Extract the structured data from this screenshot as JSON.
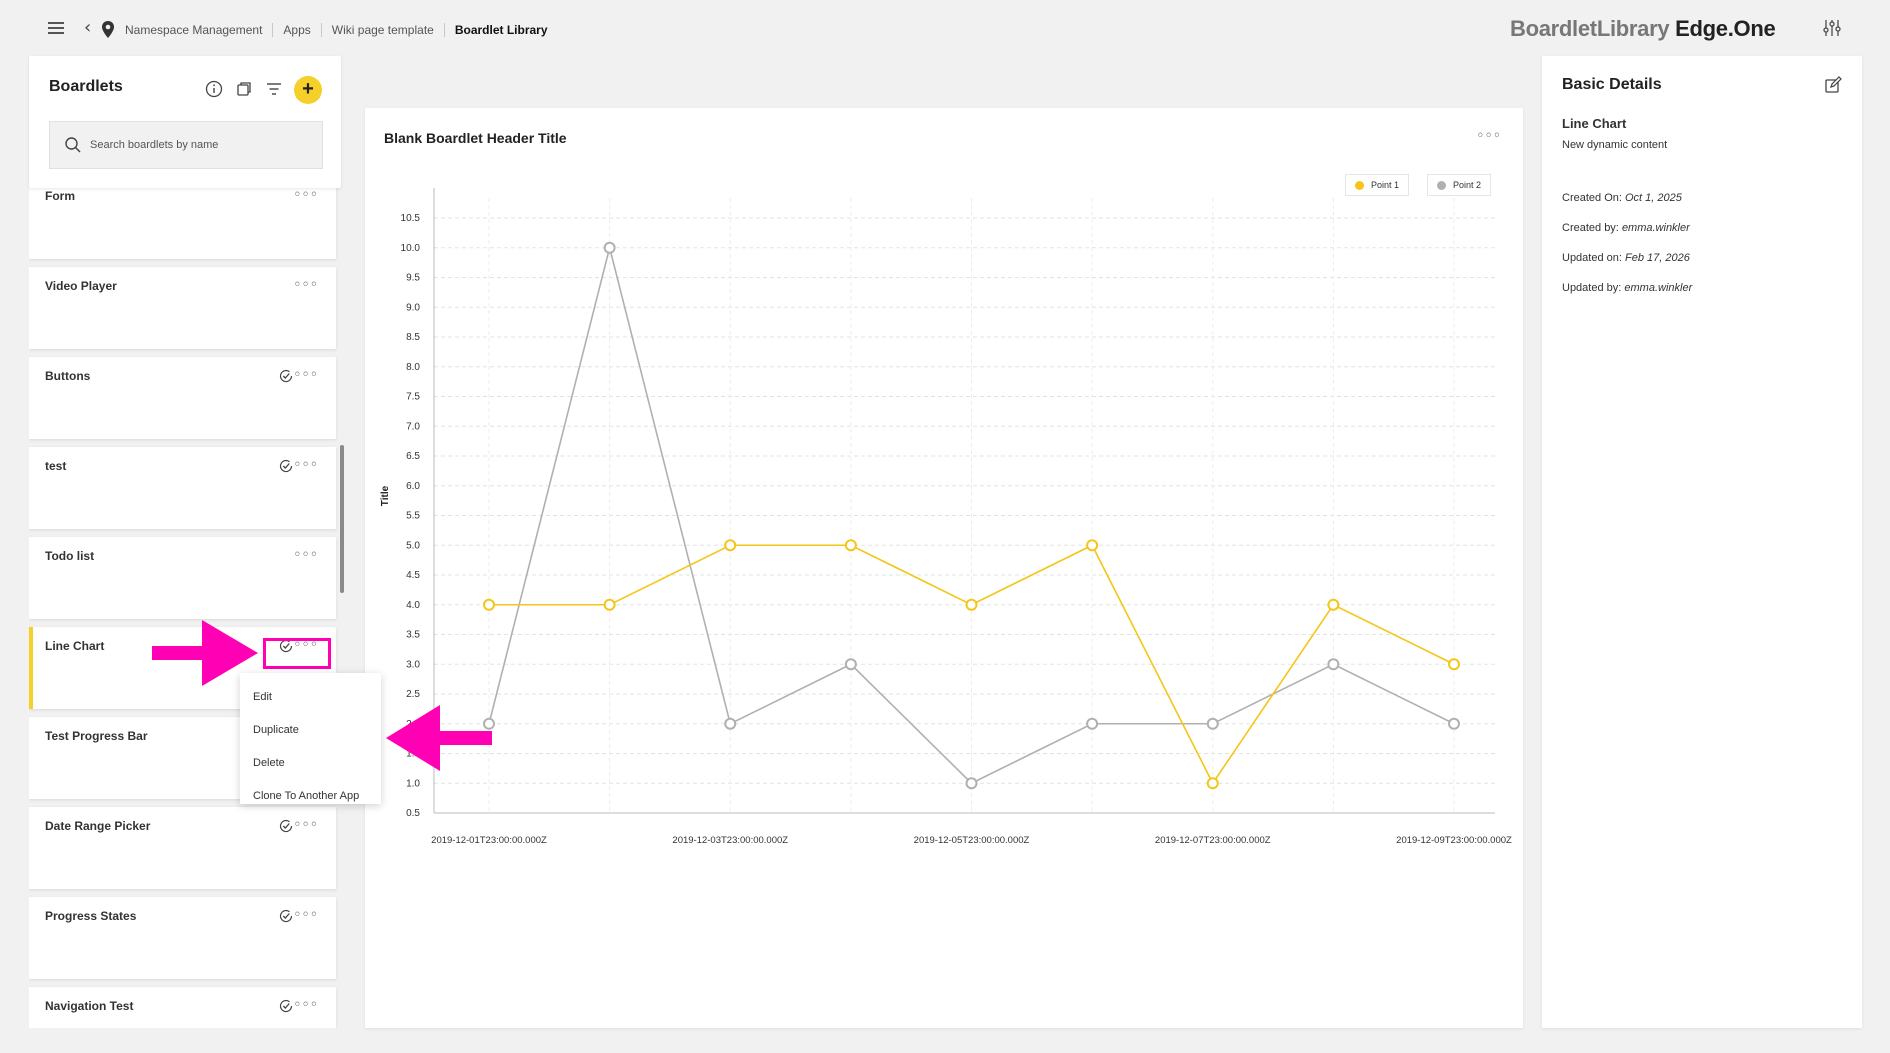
{
  "topbar": {
    "breadcrumbs": [
      "Namespace Management",
      "Apps",
      "Wiki page template",
      "Boardlet Library"
    ],
    "brand_left": "BoardletLibrary",
    "brand_right": "Edge.One"
  },
  "left_panel": {
    "title": "Boardlets",
    "search_placeholder": "Search boardlets by name",
    "items": [
      {
        "label": "Form",
        "check": false
      },
      {
        "label": "Video Player",
        "check": false
      },
      {
        "label": "Buttons",
        "check": true
      },
      {
        "label": "test",
        "check": true
      },
      {
        "label": "Todo list",
        "check": false
      },
      {
        "label": "Line Chart",
        "check": true,
        "selected": true
      },
      {
        "label": "Test Progress Bar",
        "check": false
      },
      {
        "label": "Date Range Picker",
        "check": true
      },
      {
        "label": "Progress States",
        "check": true
      },
      {
        "label": "Navigation Test",
        "check": true
      }
    ],
    "dots": "◦◦◦",
    "add_symbol": "+"
  },
  "context_menu": {
    "items": [
      "Edit",
      "Duplicate",
      "Delete",
      "Clone To Another App"
    ]
  },
  "center_panel": {
    "title": "Blank Boardlet Header Title",
    "dots": "◦◦◦"
  },
  "chart_data": {
    "type": "line",
    "title": "",
    "xlabel": "",
    "ylabel": "Title",
    "ylim": [
      0.5,
      10.5
    ],
    "yticks": [
      "0.5",
      "1.0",
      "1.5",
      "2.0",
      "2.5",
      "3.0",
      "3.5",
      "4.0",
      "4.5",
      "5.0",
      "5.5",
      "6.0",
      "6.5",
      "7.0",
      "7.5",
      "8.0",
      "8.5",
      "9.0",
      "9.5",
      "10.0",
      "10.5"
    ],
    "x": [
      "2019-12-01T23:00:00.000Z",
      "2019-12-02T23:00:00.000Z",
      "2019-12-03T23:00:00.000Z",
      "2019-12-04T23:00:00.000Z",
      "2019-12-05T23:00:00.000Z",
      "2019-12-06T23:00:00.000Z",
      "2019-12-07T23:00:00.000Z",
      "2019-12-08T23:00:00.000Z",
      "2019-12-09T23:00:00.000Z"
    ],
    "xtick_labels": [
      "2019-12-01T23:00:00.000Z",
      "2019-12-03T23:00:00.000Z",
      "2019-12-05T23:00:00.000Z",
      "2019-12-07T23:00:00.000Z",
      "2019-12-09T23:00:00.000Z"
    ],
    "series": [
      {
        "name": "Point 1",
        "color": "#f5c518",
        "values": [
          4,
          4,
          5,
          5,
          4,
          5,
          1,
          4,
          3
        ]
      },
      {
        "name": "Point 2",
        "color": "#b0b0b0",
        "values": [
          2,
          10,
          2,
          3,
          1,
          2,
          2,
          3,
          2
        ]
      }
    ],
    "grid": true,
    "legend_position": "top-right"
  },
  "right_panel": {
    "title": "Basic Details",
    "name": "Line Chart",
    "description": "New dynamic content",
    "meta": [
      {
        "label": "Created On:",
        "value": "Oct 1, 2025"
      },
      {
        "label": "Created by:",
        "value": "emma.winkler"
      },
      {
        "label": "Updated on:",
        "value": "Feb 17, 2026"
      },
      {
        "label": "Updated by:",
        "value": "emma.winkler"
      }
    ]
  },
  "colors": {
    "accent": "#f5d02b",
    "annotation": "#ff00b4"
  }
}
